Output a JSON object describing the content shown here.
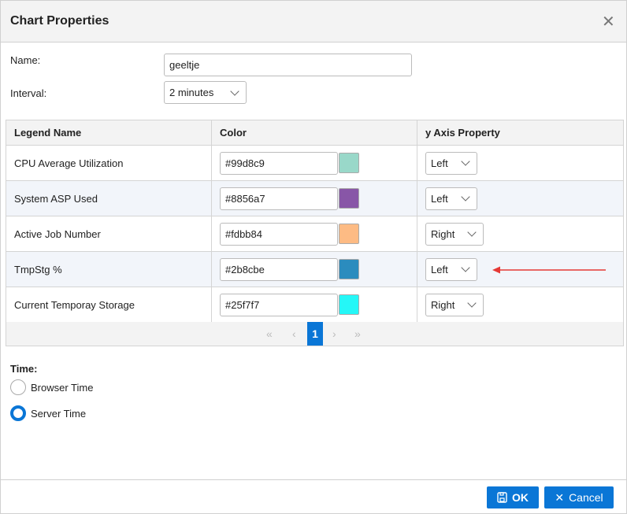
{
  "dialog": {
    "title": "Chart Properties"
  },
  "form": {
    "name_label": "Name:",
    "name_value": "geeltje",
    "interval_label": "Interval:",
    "interval_value": "2 minutes"
  },
  "table": {
    "headers": [
      "Legend Name",
      "Color",
      "y Axis Property"
    ],
    "rows": [
      {
        "legend": "CPU Average Utilization",
        "color": "#99d8c9",
        "axis": "Left"
      },
      {
        "legend": "System ASP Used",
        "color": "#8856a7",
        "axis": "Left"
      },
      {
        "legend": "Active Job Number",
        "color": "#fdbb84",
        "axis": "Right"
      },
      {
        "legend": "TmpStg %",
        "color": "#2b8cbe",
        "axis": "Left"
      },
      {
        "legend": "Current Temporay Storage",
        "color": "#25f7f7",
        "axis": "Right"
      }
    ]
  },
  "pager": {
    "first": "«",
    "prev": "‹",
    "current": "1",
    "next": "›",
    "last": "»"
  },
  "time": {
    "label": "Time:",
    "options": [
      "Browser Time",
      "Server Time"
    ],
    "selected": "Server Time"
  },
  "footer": {
    "ok": "OK",
    "cancel": "Cancel"
  },
  "annotation": {
    "arrow_color": "#e53935",
    "points_to_row": "TmpStg %"
  },
  "colors": {
    "accent": "#0a76d6"
  }
}
